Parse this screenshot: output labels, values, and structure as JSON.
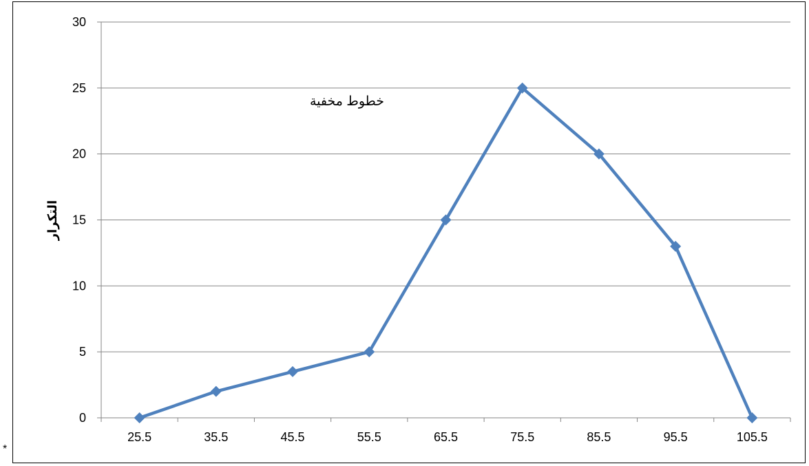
{
  "chart_data": {
    "type": "line",
    "title": "",
    "xlabel": "",
    "ylabel": "التكرار",
    "x": [
      "25.5",
      "35.5",
      "45.5",
      "55.5",
      "65.5",
      "75.5",
      "85.5",
      "95.5",
      "105.5"
    ],
    "series": [
      {
        "values": [
          0,
          2,
          3.5,
          5,
          15,
          25,
          20,
          13,
          0
        ]
      }
    ],
    "ylim": [
      0,
      30
    ],
    "yticks": [
      "0",
      "5",
      "10",
      "15",
      "20",
      "25",
      "30"
    ],
    "grid": true,
    "marker": "diamond",
    "colors": {
      "line": "#4f81bd",
      "marker": "#4f81bd",
      "grid": "#868686"
    },
    "annotation": "خطوط مخفية"
  },
  "corner_mark": "*"
}
